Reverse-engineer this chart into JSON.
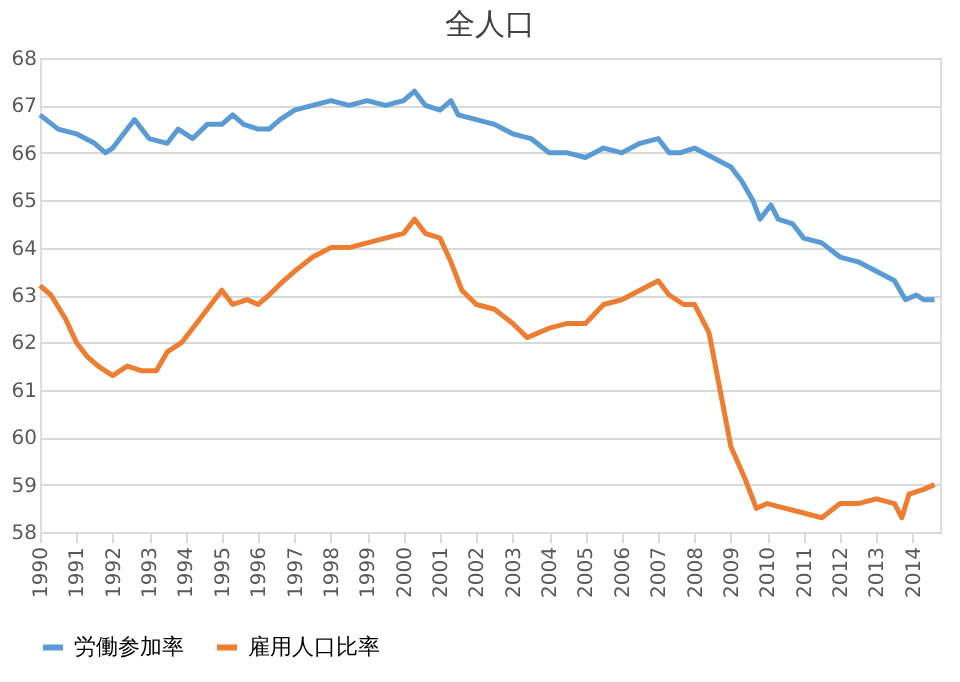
{
  "chart_data": {
    "type": "line",
    "title": "全人口",
    "xlim": [
      1990,
      2014.75
    ],
    "xticks": [
      1990,
      1991,
      1992,
      1993,
      1994,
      1995,
      1996,
      1997,
      1998,
      1999,
      2000,
      2001,
      2002,
      2003,
      2004,
      2005,
      2006,
      2007,
      2008,
      2009,
      2010,
      2011,
      2012,
      2013,
      2014
    ],
    "ylim": [
      58,
      68
    ],
    "yticks": [
      58,
      59,
      60,
      61,
      62,
      63,
      64,
      65,
      66,
      67,
      68
    ],
    "grid": "y",
    "legend": "bottom",
    "marker": "none",
    "line_style": "solid",
    "series": [
      {
        "name": "労働参加率",
        "color": "#5b9bd5",
        "x": [
          1990,
          1990.5,
          1991,
          1991.5,
          1991.8,
          1992,
          1992.4,
          1992.6,
          1993,
          1993.5,
          1993.8,
          1994.2,
          1994.6,
          1995,
          1995.3,
          1995.6,
          1996,
          1996.3,
          1996.6,
          1997,
          1997.5,
          1998,
          1998.5,
          1999,
          1999.5,
          2000,
          2000.3,
          2000.6,
          2001,
          2001.3,
          2001.5,
          2002,
          2002.5,
          2003,
          2003.5,
          2004,
          2004.5,
          2005,
          2005.5,
          2006,
          2006.5,
          2007,
          2007.3,
          2007.6,
          2008,
          2008.5,
          2009,
          2009.3,
          2009.6,
          2009.8,
          2010.1,
          2010.3,
          2010.7,
          2011,
          2011.5,
          2012,
          2012.5,
          2013,
          2013.5,
          2013.8,
          2014.1,
          2014.3,
          2014.6
        ],
        "values": [
          66.8,
          66.5,
          66.4,
          66.2,
          66.0,
          66.1,
          66.5,
          66.7,
          66.3,
          66.2,
          66.5,
          66.3,
          66.6,
          66.6,
          66.8,
          66.6,
          66.5,
          66.5,
          66.7,
          66.9,
          67.0,
          67.1,
          67.0,
          67.1,
          67.0,
          67.1,
          67.3,
          67.0,
          66.9,
          67.1,
          66.8,
          66.7,
          66.6,
          66.4,
          66.3,
          66.0,
          66.0,
          65.9,
          66.1,
          66.0,
          66.2,
          66.3,
          66.0,
          66.0,
          66.1,
          65.9,
          65.7,
          65.4,
          65.0,
          64.6,
          64.9,
          64.6,
          64.5,
          64.2,
          64.1,
          63.8,
          63.7,
          63.5,
          63.3,
          62.9,
          63.0,
          62.9,
          62.9
        ]
      },
      {
        "name": "雇用人口比率",
        "color": "#ed7d31",
        "x": [
          1990,
          1990.3,
          1990.7,
          1991,
          1991.3,
          1991.6,
          1992,
          1992.4,
          1992.8,
          1993.2,
          1993.5,
          1993.9,
          1994.3,
          1994.7,
          1995,
          1995.3,
          1995.7,
          1996,
          1996.3,
          1996.7,
          1997,
          1997.5,
          1998,
          1998.5,
          1999,
          1999.5,
          2000,
          2000.3,
          2000.6,
          2001,
          2001.3,
          2001.6,
          2002,
          2002.5,
          2003,
          2003.4,
          2004,
          2004.5,
          2005,
          2005.5,
          2006,
          2006.5,
          2007,
          2007.3,
          2007.7,
          2008,
          2008.4,
          2008.7,
          2009,
          2009.4,
          2009.7,
          2010,
          2010.5,
          2011,
          2011.5,
          2012,
          2012.5,
          2013,
          2013.5,
          2013.7,
          2013.9,
          2014.3,
          2014.6
        ],
        "values": [
          63.2,
          63.0,
          62.5,
          62.0,
          61.7,
          61.5,
          61.3,
          61.5,
          61.4,
          61.4,
          61.8,
          62.0,
          62.4,
          62.8,
          63.1,
          62.8,
          62.9,
          62.8,
          63.0,
          63.3,
          63.5,
          63.8,
          64.0,
          64.0,
          64.1,
          64.2,
          64.3,
          64.6,
          64.3,
          64.2,
          63.7,
          63.1,
          62.8,
          62.7,
          62.4,
          62.1,
          62.3,
          62.4,
          62.4,
          62.8,
          62.9,
          63.1,
          63.3,
          63.0,
          62.8,
          62.8,
          62.2,
          61.0,
          59.8,
          59.1,
          58.5,
          58.6,
          58.5,
          58.4,
          58.3,
          58.6,
          58.6,
          58.7,
          58.6,
          58.3,
          58.8,
          58.9,
          59.0
        ]
      }
    ]
  }
}
